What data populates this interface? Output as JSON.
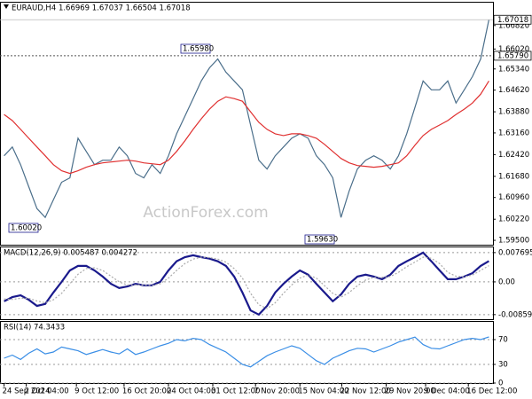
{
  "chart_data": [
    {
      "type": "line",
      "title": "EURAUD,H4  1.66969 1.67037 1.66504 1.67018",
      "watermark": "ActionForex.com",
      "ylim": [
        1.5935,
        1.6763
      ],
      "yticks": [
        {
          "value": 1.6682,
          "label": "1.66820"
        },
        {
          "value": 1.6602,
          "label": "1.66020"
        },
        {
          "value": 1.6534,
          "label": "1.65340"
        },
        {
          "value": 1.6462,
          "label": "1.64620"
        },
        {
          "value": 1.6388,
          "label": "1.63880"
        },
        {
          "value": 1.6316,
          "label": "1.63160"
        },
        {
          "value": 1.6242,
          "label": "1.62420"
        },
        {
          "value": 1.6168,
          "label": "1.61680"
        },
        {
          "value": 1.6096,
          "label": "1.60960"
        },
        {
          "value": 1.6022,
          "label": "1.60220"
        },
        {
          "value": 1.595,
          "label": "1.59500"
        }
      ],
      "grid": false,
      "hline": {
        "value": 1.6579,
        "label": "1.65790"
      },
      "last": {
        "value": 1.67018,
        "label": "1.67018"
      },
      "annotations": [
        "1.65980",
        "1.60020",
        "1.59630"
      ],
      "series": [
        {
          "name": "EURAUD",
          "color": "#4a6e8a",
          "values": [
            1.6238,
            1.6268,
            1.6208,
            1.6133,
            1.6058,
            1.6028,
            1.6088,
            1.6148,
            1.6163,
            1.6298,
            1.6253,
            1.6208,
            1.6223,
            1.6223,
            1.6268,
            1.6238,
            1.6178,
            1.6163,
            1.6208,
            1.6178,
            1.6238,
            1.6313,
            1.6373,
            1.6433,
            1.6493,
            1.6538,
            1.6568,
            1.6523,
            1.6493,
            1.6463,
            1.6343,
            1.6223,
            1.6193,
            1.6238,
            1.6268,
            1.6298,
            1.6313,
            1.6298,
            1.6238,
            1.6208,
            1.6163,
            1.6028,
            1.6118,
            1.6193,
            1.6223,
            1.6238,
            1.6223,
            1.6193,
            1.6238,
            1.6313,
            1.6403,
            1.6493,
            1.6463,
            1.6463,
            1.6493,
            1.6418,
            1.6463,
            1.6508,
            1.6568,
            1.6702
          ]
        },
        {
          "name": "MA",
          "color": "#e03030",
          "values": [
            1.6379,
            1.6358,
            1.6328,
            1.6298,
            1.6268,
            1.6238,
            1.6208,
            1.6187,
            1.6178,
            1.6187,
            1.6199,
            1.6208,
            1.6214,
            1.6217,
            1.622,
            1.6223,
            1.622,
            1.6214,
            1.6211,
            1.6208,
            1.6223,
            1.6253,
            1.6289,
            1.6328,
            1.6364,
            1.6397,
            1.6424,
            1.6439,
            1.6433,
            1.6424,
            1.6388,
            1.6352,
            1.6328,
            1.6313,
            1.6307,
            1.6313,
            1.6313,
            1.6307,
            1.6298,
            1.6277,
            1.6253,
            1.6229,
            1.6214,
            1.6205,
            1.6202,
            1.6199,
            1.6202,
            1.6208,
            1.6214,
            1.6238,
            1.6274,
            1.6307,
            1.6328,
            1.6343,
            1.6358,
            1.6379,
            1.6397,
            1.6418,
            1.6448,
            1.6493
          ]
        }
      ]
    },
    {
      "type": "line",
      "title": "MACD(12,26,9) 0.005487 0.004272",
      "ylim": [
        -0.0098,
        0.0093
      ],
      "yticks": [
        {
          "value": 0.007695,
          "label": "0.007695"
        },
        {
          "value": 0,
          "label": "0.00"
        },
        {
          "value": -0.008599,
          "label": "-0.008599"
        }
      ],
      "grid": true,
      "series": [
        {
          "name": "MACD",
          "color": "#1a1a8c",
          "values": [
            -0.0051,
            -0.004,
            -0.0035,
            -0.0047,
            -0.0063,
            -0.0058,
            -0.0028,
            0,
            0.003,
            0.0042,
            0.0042,
            0.003,
            0.0014,
            -0.0005,
            -0.0016,
            -0.0012,
            -0.0005,
            -0.0009,
            -0.0009,
            0,
            0.003,
            0.0054,
            0.0065,
            0.007,
            0.0065,
            0.0061,
            0.0054,
            0.0042,
            0.0014,
            -0.0028,
            -0.0075,
            -0.0086,
            -0.0063,
            -0.0028,
            -0.0005,
            0.0014,
            0.003,
            0.0019,
            -0.0005,
            -0.0028,
            -0.0051,
            -0.0033,
            -0.0005,
            0.0014,
            0.0019,
            0.0014,
            0.0007,
            0.0019,
            0.0042,
            0.0054,
            0.0065,
            0.0077,
            0.0054,
            0.003,
            0.0007,
            0.0007,
            0.0014,
            0.0023,
            0.0042,
            0.005487
          ]
        },
        {
          "name": "Signal",
          "color": "#aaaaaa",
          "values": [
            -0.0045,
            -0.0046,
            -0.0043,
            -0.0043,
            -0.005,
            -0.0055,
            -0.0047,
            -0.003,
            -0.0005,
            0.002,
            0.0035,
            0.0037,
            0.003,
            0.0015,
            0,
            -0.0008,
            -0.0008,
            -0.0008,
            -0.0009,
            -0.0005,
            0.001,
            0.003,
            0.0048,
            0.006,
            0.0065,
            0.0064,
            0.006,
            0.0052,
            0.0035,
            0.001,
            -0.003,
            -0.006,
            -0.007,
            -0.0055,
            -0.003,
            -0.0008,
            0.001,
            0.0018,
            0.001,
            -0.001,
            -0.003,
            -0.004,
            -0.0028,
            -0.001,
            0.0005,
            0.0012,
            0.0012,
            0.0014,
            0.0025,
            0.004,
            0.0052,
            0.0065,
            0.0062,
            0.0048,
            0.0025,
            0.0015,
            0.0013,
            0.0018,
            0.003,
            0.004272
          ]
        }
      ]
    },
    {
      "type": "line",
      "title": "RSI(14) 74.3433",
      "ylim": [
        0,
        100
      ],
      "yticks": [
        70,
        30,
        0
      ],
      "grid": true,
      "xlim": [
        -0.5,
        59.5
      ],
      "xticks": [
        {
          "value": 0,
          "label": "24 Sep 2024"
        },
        {
          "value": 2.7,
          "label": "2 Oct 04:00"
        },
        {
          "value": 8.8,
          "label": "9 Oct 12:00"
        },
        {
          "value": 14.6,
          "label": "16 Oct 20:00"
        },
        {
          "value": 20,
          "label": "24 Oct 04:00"
        },
        {
          "value": 25.4,
          "label": "31 Oct 12:00"
        },
        {
          "value": 30.6,
          "label": "7 Nov 20:00"
        },
        {
          "value": 36,
          "label": "15 Nov 04:00"
        },
        {
          "value": 41.1,
          "label": "22 Nov 12:00"
        },
        {
          "value": 46.5,
          "label": "29 Nov 20:00"
        },
        {
          "value": 51.3,
          "label": "9 Dec 04:00"
        },
        {
          "value": 56.5,
          "label": "16 Dec 12:00"
        }
      ],
      "series": [
        {
          "name": "RSI",
          "color": "#3a8ee6",
          "values": [
            40,
            45,
            38,
            48,
            55,
            47,
            50,
            58,
            55,
            52,
            46,
            50,
            54,
            50,
            47,
            55,
            46,
            50,
            55,
            60,
            64,
            70,
            68,
            72,
            70,
            62,
            56,
            50,
            40,
            30,
            26,
            35,
            44,
            50,
            55,
            60,
            56,
            46,
            36,
            30,
            40,
            46,
            52,
            56,
            55,
            50,
            55,
            60,
            66,
            70,
            74,
            62,
            56,
            55,
            60,
            65,
            70,
            72,
            70,
            74.3433
          ]
        }
      ]
    }
  ]
}
